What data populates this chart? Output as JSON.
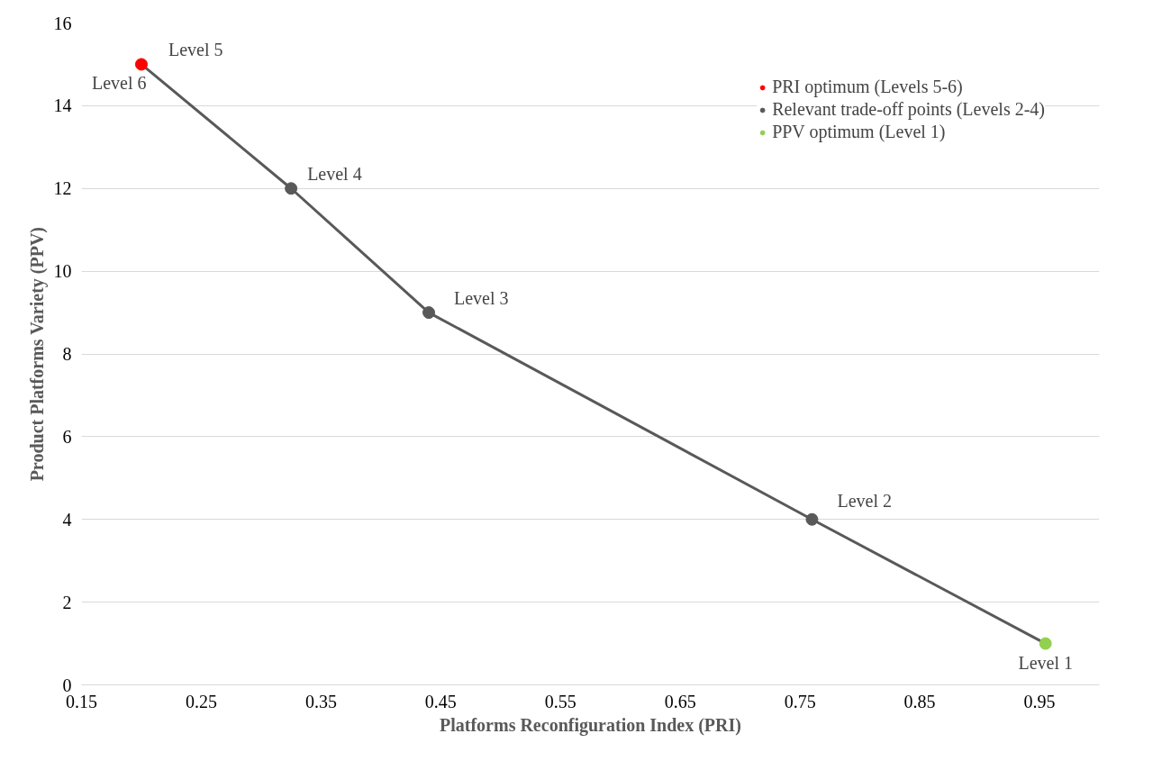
{
  "chart_data": {
    "type": "scatter",
    "xlabel": "Platforms Reconfiguration Index (PRI)",
    "ylabel": "Product Platforms Variety (PPV)",
    "xlim": [
      0.15,
      1.0
    ],
    "xticks": [
      0.15,
      0.25,
      0.35,
      0.45,
      0.55,
      0.65,
      0.75,
      0.85,
      0.95
    ],
    "ylim": [
      0,
      16
    ],
    "yticks": [
      0,
      2,
      4,
      6,
      8,
      10,
      12,
      14,
      16
    ],
    "grid": "y",
    "legend": "top right",
    "series": [
      {
        "type": "line",
        "marker": "none",
        "color": "#595959",
        "x": [
          0.2,
          0.325,
          0.44,
          0.76,
          0.955
        ],
        "values": [
          15,
          12,
          9,
          4,
          1
        ]
      },
      {
        "name": "PRI optimum (Levels 5-6)",
        "marker": "circle",
        "color": "#ff0000",
        "x": [
          0.2
        ],
        "values": [
          15
        ]
      },
      {
        "name": "Relevant trade-off points (Levels 2-4)",
        "marker": "circle",
        "color": "#595959",
        "x": [
          0.325,
          0.44,
          0.76
        ],
        "values": [
          12,
          9,
          4
        ]
      },
      {
        "name": "PPV optimum (Level 1)",
        "marker": "circle",
        "color": "#92d050",
        "x": [
          0.955
        ],
        "values": [
          1
        ]
      }
    ],
    "annotations": [
      {
        "text": "Level 5",
        "x": 0.2,
        "y": 15
      },
      {
        "text": "Level 6",
        "x": 0.2,
        "y": 15
      },
      {
        "text": "Level 4",
        "x": 0.325,
        "y": 12
      },
      {
        "text": "Level 3",
        "x": 0.44,
        "y": 9
      },
      {
        "text": "Level 2",
        "x": 0.76,
        "y": 4
      },
      {
        "text": "Level 1",
        "x": 0.955,
        "y": 1
      }
    ]
  }
}
